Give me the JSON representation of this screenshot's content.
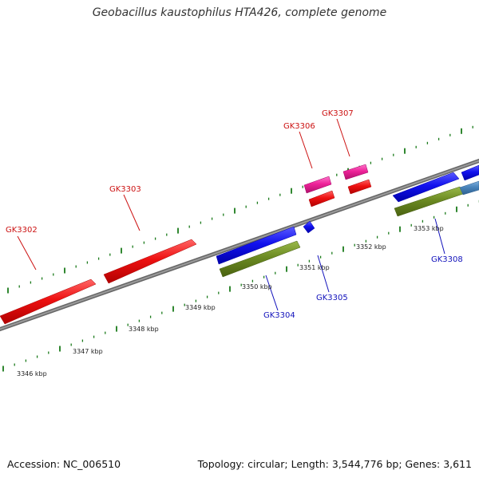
{
  "header": {
    "title": "Geobacillus kaustophilus HTA426, complete genome"
  },
  "footer": {
    "accession": "Accession: NC_006510",
    "summary": "Topology: circular; Length: 3,544,776 bp; Genes: 3,611"
  },
  "colors": {
    "gene_red": "#ee1111",
    "gene_pink": "#ee2299",
    "gene_blue": "#1111ee",
    "gene_olive": "#6b8a22",
    "gene_steel": "#4a84bb",
    "backbone": "#888888",
    "tick_green": "#1a7a1a",
    "label_red": "#cc1111",
    "label_blue": "#1111bb"
  },
  "scale_labels": [
    "3346 kbp",
    "3347 kbp",
    "3348 kbp",
    "3349 kbp",
    "3350 kbp",
    "3351 kbp",
    "3352 kbp",
    "3353 kbp"
  ],
  "gene_labels": {
    "GK3302": "GK3302",
    "GK3303": "GK3303",
    "GK3304": "GK3304",
    "GK3305": "GK3305",
    "GK3306": "GK3306",
    "GK3307": "GK3307",
    "GK3308": "GK3308"
  }
}
